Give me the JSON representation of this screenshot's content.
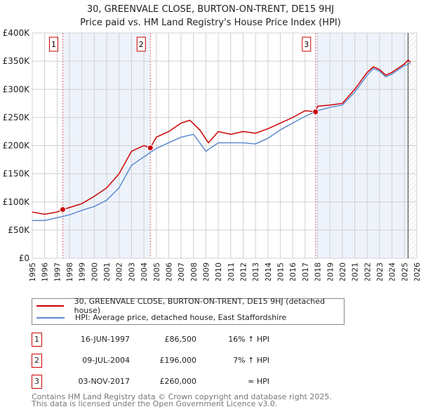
{
  "title": "30, GREENVALE CLOSE, BURTON-ON-TRENT, DE15 9HJ",
  "subtitle": "Price paid vs. HM Land Registry's House Price Index (HPI)",
  "chart_data": {
    "type": "line",
    "ylim": [
      0,
      400000
    ],
    "xlim": [
      1995,
      2026
    ],
    "yticks": [
      {
        "v": 0,
        "l": "£0"
      },
      {
        "v": 50000,
        "l": "£50K"
      },
      {
        "v": 100000,
        "l": "£100K"
      },
      {
        "v": 150000,
        "l": "£150K"
      },
      {
        "v": 200000,
        "l": "£200K"
      },
      {
        "v": 250000,
        "l": "£250K"
      },
      {
        "v": 300000,
        "l": "£300K"
      },
      {
        "v": 350000,
        "l": "£350K"
      },
      {
        "v": 400000,
        "l": "£400K"
      }
    ],
    "xticks": [
      "1995",
      "1996",
      "1997",
      "1998",
      "1999",
      "2000",
      "2001",
      "2002",
      "2003",
      "2004",
      "2005",
      "2006",
      "2007",
      "2008",
      "2009",
      "2010",
      "2011",
      "2012",
      "2013",
      "2014",
      "2015",
      "2016",
      "2017",
      "2018",
      "2019",
      "2020",
      "2021",
      "2022",
      "2023",
      "2024",
      "2025",
      "2026"
    ],
    "series": [
      {
        "name": "30, GREENVALE CLOSE, BURTON-ON-TRENT, DE15 9HJ (detached house)",
        "color": "#cc0000",
        "x": [
          1995,
          1996,
          1997,
          1997.46,
          1998,
          1999,
          2000,
          2001,
          2002,
          2003,
          2004,
          2004.52,
          2005,
          2006,
          2007,
          2007.7,
          2008.5,
          2009.2,
          2010,
          2011,
          2012,
          2013,
          2014,
          2015,
          2016,
          2017,
          2017.84,
          2018,
          2019,
          2020,
          2021,
          2022,
          2022.5,
          2023,
          2023.5,
          2024,
          2025,
          2025.3,
          2025.5
        ],
        "y": [
          82000,
          78000,
          82000,
          86500,
          90000,
          97000,
          110000,
          125000,
          150000,
          190000,
          200000,
          196000,
          215000,
          225000,
          240000,
          245000,
          228000,
          205000,
          225000,
          220000,
          225000,
          222000,
          230000,
          240000,
          250000,
          262000,
          260000,
          270000,
          272000,
          275000,
          300000,
          330000,
          340000,
          335000,
          325000,
          330000,
          345000,
          352000,
          348000
        ]
      },
      {
        "name": "HPI: Average price, detached house, East Staffordshire",
        "color": "#5b8bd0",
        "x": [
          1995,
          1996,
          1997,
          1998,
          1999,
          2000,
          2001,
          2002,
          2003,
          2004,
          2005,
          2006,
          2007,
          2008,
          2009,
          2010,
          2011,
          2012,
          2013,
          2014,
          2015,
          2016,
          2017,
          2018,
          2019,
          2020,
          2021,
          2022,
          2022.5,
          2023,
          2023.5,
          2024,
          2025,
          2025.5
        ],
        "y": [
          67000,
          67000,
          72000,
          77000,
          85000,
          92000,
          103000,
          125000,
          165000,
          180000,
          195000,
          205000,
          215000,
          220000,
          190000,
          205000,
          205000,
          205000,
          203000,
          213000,
          228000,
          240000,
          252000,
          262000,
          268000,
          272000,
          295000,
          325000,
          337000,
          332000,
          322000,
          327000,
          342000,
          346000
        ]
      }
    ],
    "sales": [
      {
        "n": "1",
        "x": 1997.46,
        "y": 86500
      },
      {
        "n": "2",
        "x": 2004.52,
        "y": 196000
      },
      {
        "n": "3",
        "x": 2017.84,
        "y": 260000
      }
    ],
    "forecast_from": 2025.3
  },
  "legend": [
    "30, GREENVALE CLOSE, BURTON-ON-TRENT, DE15 9HJ (detached house)",
    "HPI: Average price, detached house, East Staffordshire"
  ],
  "table": [
    {
      "n": "1",
      "date": "16-JUN-1997",
      "price": "£86,500",
      "hpi": "16% ↑ HPI"
    },
    {
      "n": "2",
      "date": "09-JUL-2004",
      "price": "£196,000",
      "hpi": "7% ↑ HPI"
    },
    {
      "n": "3",
      "date": "03-NOV-2017",
      "price": "£260,000",
      "hpi": "≈ HPI"
    }
  ],
  "footer": [
    "Contains HM Land Registry data © Crown copyright and database right 2025.",
    "This data is licensed under the Open Government Licence v3.0."
  ]
}
